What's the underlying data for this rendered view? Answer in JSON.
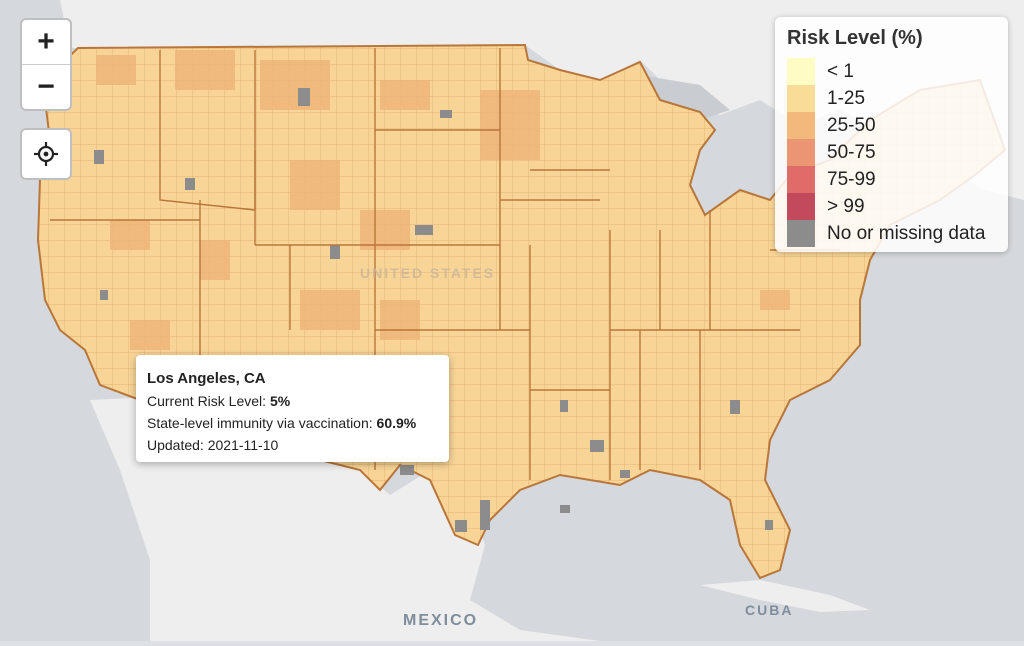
{
  "controls": {
    "zoom_in": "+",
    "zoom_out": "−",
    "locate_icon": "crosshair-icon"
  },
  "map_labels": {
    "country": "UNITED STATES",
    "mexico": "MEXICO",
    "cuba": "CUBA"
  },
  "legend": {
    "title": "Risk Level (%)",
    "items": [
      {
        "label": "< 1",
        "color": "#fffbc4"
      },
      {
        "label": "1-25",
        "color": "#f9dc98"
      },
      {
        "label": "25-50",
        "color": "#f3b97a"
      },
      {
        "label": "50-75",
        "color": "#ec9573"
      },
      {
        "label": "75-99",
        "color": "#e06c69"
      },
      {
        "label": "> 99",
        "color": "#c24a5c"
      },
      {
        "label": "No or missing data",
        "color": "#8c8c8c"
      }
    ]
  },
  "popup": {
    "county": "Los Angeles, CA",
    "risk_label": "Current Risk Level: ",
    "risk_value": "5%",
    "immunity_label": "State-level immunity via vaccination: ",
    "immunity_value": "60.9%",
    "updated": "Updated: 2021-11-10"
  },
  "colors": {
    "water": "#d5d8dc",
    "land": "#f0f0f0",
    "counties_base": "#f8d597",
    "county_border": "#d9a25e",
    "state_border": "#b9763a"
  }
}
